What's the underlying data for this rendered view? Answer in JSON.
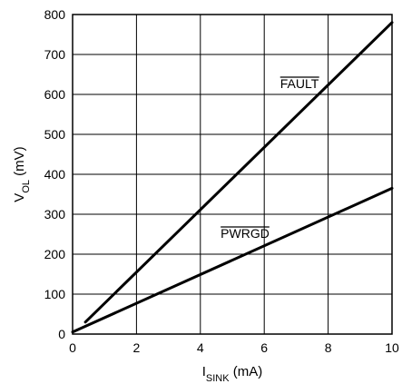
{
  "chart_data": {
    "type": "line",
    "title": "",
    "xlabel": {
      "main": "I",
      "sub": "SINK",
      "unit": " (mA)"
    },
    "ylabel": {
      "main": "V",
      "sub": "OL",
      "unit": " (mV)"
    },
    "xlim": [
      0,
      10
    ],
    "ylim": [
      0,
      800
    ],
    "xticks": [
      0,
      2,
      4,
      6,
      8,
      10
    ],
    "yticks": [
      0,
      100,
      200,
      300,
      400,
      500,
      600,
      700,
      800
    ],
    "grid": true,
    "series": [
      {
        "name": "FAULT",
        "overbar": true,
        "x": [
          0.4,
          10
        ],
        "y": [
          30,
          780
        ]
      },
      {
        "name": "PWRGD",
        "overbar": true,
        "x": [
          0,
          10
        ],
        "y": [
          5,
          365
        ]
      }
    ]
  }
}
